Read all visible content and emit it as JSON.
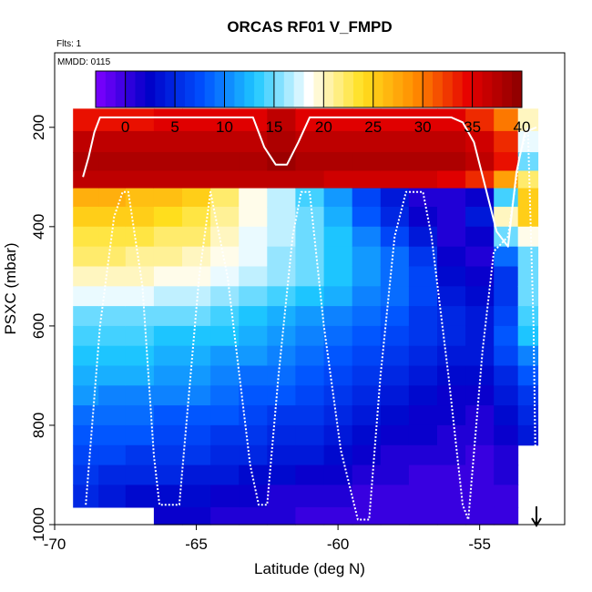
{
  "chart_data": {
    "type": "heatmap",
    "title": "ORCAS RF01 V_FMPD",
    "annotations": [
      "Flts: 1",
      "MMDD: 0115"
    ],
    "xlabel": "Latitude (deg N)",
    "ylabel": "PSXC (mbar)",
    "xlim": [
      -70,
      -52
    ],
    "ylim": [
      1000,
      50
    ],
    "y_reversed": true,
    "x_ticks": [
      -70,
      -65,
      -60,
      -55
    ],
    "y_ticks": [
      200,
      400,
      600,
      800,
      1000
    ],
    "colorbar": {
      "range": [
        -3,
        40
      ],
      "ticks": [
        0,
        5,
        10,
        15,
        20,
        25,
        30,
        35,
        40
      ],
      "colors": [
        "#7f00ff",
        "#0000c8",
        "#0050ff",
        "#1ec8ff",
        "#ffffff",
        "#ffe01e",
        "#ff8c00",
        "#e60000",
        "#8b0000"
      ]
    },
    "pressure_levels": [
      185,
      230,
      270,
      305,
      340,
      380,
      420,
      460,
      500,
      540,
      580,
      620,
      660,
      700,
      740,
      780,
      820,
      860,
      900,
      940,
      990
    ],
    "columns": [
      {
        "x": -68.9,
        "values": [
          34,
          37,
          38,
          37,
          27,
          25,
          23,
          22,
          20,
          18,
          15,
          14,
          13,
          12,
          11,
          9,
          8,
          7,
          6,
          5,
          null
        ]
      },
      {
        "x": -68.0,
        "values": [
          34,
          37,
          38,
          37,
          27,
          25,
          23,
          22,
          20,
          18,
          15,
          14,
          13,
          12,
          10,
          9,
          8,
          7,
          5,
          4,
          null
        ]
      },
      {
        "x": -67.0,
        "values": [
          34,
          37,
          38,
          37,
          26,
          25,
          23,
          21,
          20,
          18,
          15,
          14,
          13,
          12,
          10,
          9,
          8,
          6,
          5,
          3,
          null
        ]
      },
      {
        "x": -66.0,
        "values": [
          35,
          37,
          38,
          37,
          26,
          24,
          22,
          21,
          19,
          17,
          15,
          13,
          12,
          11,
          10,
          8,
          7,
          6,
          5,
          3,
          2
        ]
      },
      {
        "x": -65.0,
        "values": [
          35,
          37,
          38,
          37,
          25,
          23,
          22,
          20,
          19,
          17,
          15,
          13,
          12,
          11,
          10,
          8,
          7,
          6,
          4,
          3,
          2
        ]
      },
      {
        "x": -64.0,
        "values": [
          35,
          37,
          38,
          37,
          22,
          21,
          20,
          19,
          18,
          16,
          14,
          13,
          11,
          10,
          9,
          8,
          6,
          5,
          4,
          2,
          1
        ]
      },
      {
        "x": -63.0,
        "values": [
          35,
          37,
          38,
          37,
          19,
          19,
          18,
          18,
          17,
          15,
          13,
          12,
          11,
          9,
          8,
          7,
          6,
          5,
          3,
          2,
          1
        ]
      },
      {
        "x": -62.0,
        "values": [
          37,
          38,
          39,
          37,
          17,
          17,
          17,
          16,
          16,
          14,
          12,
          11,
          10,
          9,
          8,
          6,
          5,
          4,
          3,
          1,
          1
        ]
      },
      {
        "x": -61.0,
        "values": [
          35,
          37,
          38,
          37,
          14,
          15,
          15,
          15,
          15,
          13,
          11,
          10,
          9,
          8,
          7,
          6,
          5,
          4,
          2,
          1,
          0
        ]
      },
      {
        "x": -60.0,
        "values": [
          35,
          37,
          38,
          36,
          11,
          12,
          13,
          13,
          13,
          12,
          10,
          9,
          8,
          7,
          6,
          5,
          4,
          3,
          2,
          1,
          0
        ]
      },
      {
        "x": -59.0,
        "values": [
          35,
          37,
          38,
          36,
          7,
          8,
          10,
          11,
          11,
          10,
          9,
          8,
          7,
          6,
          5,
          4,
          3,
          2,
          1,
          0,
          0
        ]
      },
      {
        "x": -58.0,
        "values": [
          35,
          37,
          38,
          36,
          4,
          5,
          7,
          9,
          9,
          9,
          8,
          7,
          6,
          5,
          4,
          3,
          2,
          1,
          1,
          0,
          0
        ]
      },
      {
        "x": -57.0,
        "values": [
          35,
          37,
          38,
          36,
          1,
          2,
          4,
          6,
          7,
          7,
          6,
          6,
          5,
          4,
          3,
          2,
          2,
          1,
          0,
          0,
          0
        ]
      },
      {
        "x": -56.0,
        "values": [
          35,
          37,
          38,
          35,
          1,
          1,
          1,
          2,
          3,
          4,
          5,
          5,
          4,
          3,
          2,
          2,
          1,
          1,
          0,
          0,
          0
        ]
      },
      {
        "x": -55.0,
        "values": [
          33,
          36,
          37,
          33,
          2,
          4,
          2,
          1,
          2,
          3,
          4,
          4,
          4,
          3,
          2,
          1,
          1,
          0,
          0,
          0,
          0
        ]
      },
      {
        "x": -54.0,
        "values": [
          30,
          33,
          34,
          28,
          14,
          20,
          15,
          9,
          6,
          6,
          7,
          8,
          7,
          5,
          4,
          3,
          2,
          1,
          1,
          0,
          0
        ]
      },
      {
        "x": -53.3,
        "values": [
          20,
          18,
          15,
          22,
          25,
          25,
          19,
          15,
          15,
          15,
          14,
          13,
          10,
          8,
          6,
          5,
          4,
          null,
          null,
          null,
          null
        ]
      }
    ],
    "series": [
      {
        "name": "flight track (lower altitude)",
        "style": "dotted",
        "color": "#ffffff",
        "x": [
          -68.9,
          -68.4,
          -67.9,
          -67.6,
          -67.4,
          -66.9,
          -66.5,
          -66.3,
          -65.6,
          -64.9,
          -64.5,
          -63.9,
          -63.1,
          -62.8,
          -62.5,
          -62.1,
          -61.6,
          -61.3,
          -61.0,
          -60.5,
          -59.9,
          -59.3,
          -58.9,
          -58.5,
          -58.0,
          -57.6,
          -57.0,
          -56.7,
          -56.1,
          -55.6,
          -55.4,
          -54.9,
          -54.5,
          -54.0,
          -53.6,
          -53.3,
          -53.1,
          -53.0
        ],
        "y": [
          960,
          600,
          380,
          330,
          330,
          520,
          860,
          960,
          960,
          500,
          330,
          500,
          880,
          960,
          960,
          700,
          420,
          330,
          330,
          600,
          850,
          990,
          990,
          700,
          420,
          330,
          330,
          420,
          700,
          960,
          990,
          650,
          450,
          420,
          260,
          200,
          600,
          990
        ]
      },
      {
        "name": "flight track (upper altitude)",
        "style": "solid",
        "color": "#ffffff",
        "x": [
          -69.0,
          -68.8,
          -68.6,
          -68.4,
          -67.5,
          -66.0,
          -64.0,
          -63.0,
          -62.6,
          -62.2,
          -61.8,
          -61.4,
          -61.0,
          -60.0,
          -58.0,
          -56.0,
          -55.6,
          -55.2,
          -54.8,
          -54.4,
          -54.0,
          -53.7,
          -53.4,
          -53.0
        ],
        "y": [
          300,
          260,
          210,
          180,
          180,
          180,
          180,
          180,
          240,
          275,
          275,
          230,
          180,
          180,
          180,
          180,
          190,
          230,
          320,
          410,
          440,
          290,
          210,
          200
        ]
      }
    ]
  }
}
